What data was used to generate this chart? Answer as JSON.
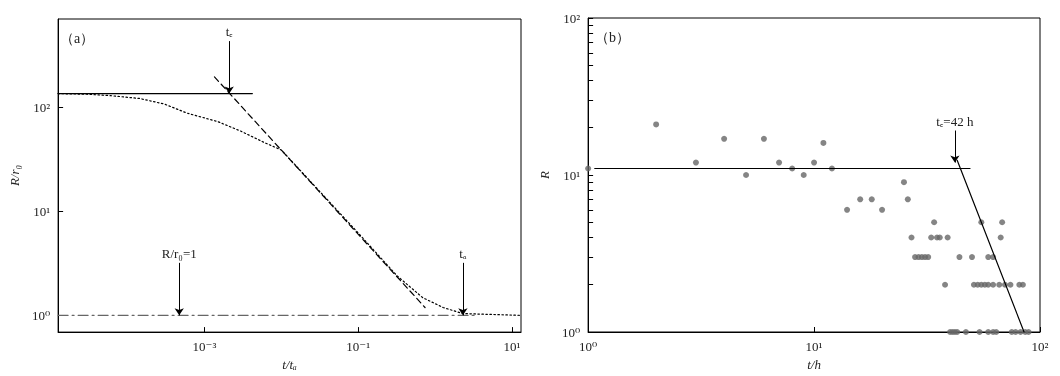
{
  "chart_data": [
    {
      "type": "line",
      "xlabel": "t/tₐ",
      "ylabel": "R/r₀",
      "log": "xy",
      "grid": false,
      "marker": "none",
      "xlim": [
        1.25e-05,
        13.1
      ],
      "ylim": [
        0.69,
        710
      ],
      "xticks": [
        {
          "value": 0.001,
          "label": "10⁻³"
        },
        {
          "value": 0.1,
          "label": "10⁻¹"
        },
        {
          "value": 10,
          "label": "10¹"
        }
      ],
      "yticks": [
        {
          "value": 1,
          "label": "10⁰"
        },
        {
          "value": 10,
          "label": "10¹"
        },
        {
          "value": 100,
          "label": "10²"
        }
      ],
      "series": [
        {
          "type": "line",
          "color": "#000000",
          "line_style": "solid",
          "x": [
            1.25e-05,
            0.0042
          ],
          "values": [
            136,
            136
          ]
        },
        {
          "type": "line",
          "color": "#000000",
          "line_style": "dashed",
          "x": [
            0.00135,
            0.74
          ],
          "values": [
            197,
            1.19
          ]
        },
        {
          "type": "line",
          "color": "#000000",
          "line_style": "dotted",
          "x": [
            1.25e-05,
            3e-05,
            6e-05,
            0.000144,
            0.0003,
            0.0006,
            0.0015,
            0.003,
            0.006,
            0.01,
            0.1,
            0.32,
            0.69,
            1.27,
            2.3,
            13.1
          ],
          "values": [
            136,
            134,
            130,
            122,
            108,
            88,
            73,
            59,
            46,
            39,
            6.2,
            2.4,
            1.48,
            1.19,
            1.04,
            1
          ]
        },
        {
          "type": "line",
          "color": "#666666",
          "line_style": "dashdot",
          "x": [
            1.25e-05,
            3.5
          ],
          "values": [
            1,
            1
          ]
        }
      ],
      "annotations": [
        "（a）",
        {
          "text": "tₑ",
          "x": 0.0021,
          "y": 136
        },
        {
          "text": "R/r₀=1",
          "x": 0.00047,
          "y": 1
        },
        {
          "text": "tₐ",
          "x": 2.3,
          "y": 1
        }
      ]
    },
    {
      "type": "scatter",
      "xlabel": "t/h",
      "ylabel": "R",
      "log": "xy",
      "grid": false,
      "marker": "circle",
      "xlim": [
        1,
        100
      ],
      "ylim": [
        1,
        100
      ],
      "xticks": [
        {
          "value": 1,
          "label": "10⁰"
        },
        {
          "value": 10,
          "label": "10¹"
        },
        {
          "value": 100,
          "label": "10²"
        }
      ],
      "yticks": [
        {
          "value": 1,
          "label": "10⁰"
        },
        {
          "value": 2,
          "label": null
        },
        {
          "value": 3,
          "label": null
        },
        {
          "value": 4,
          "label": null
        },
        {
          "value": 5,
          "label": null
        },
        {
          "value": 6,
          "label": null
        },
        {
          "value": 7,
          "label": null
        },
        {
          "value": 8,
          "label": null
        },
        {
          "value": 9,
          "label": null
        },
        {
          "value": 10,
          "label": "10¹"
        },
        {
          "value": 20,
          "label": null
        },
        {
          "value": 30,
          "label": null
        },
        {
          "value": 40,
          "label": null
        },
        {
          "value": 50,
          "label": null
        },
        {
          "value": 60,
          "label": null
        },
        {
          "value": 70,
          "label": null
        },
        {
          "value": 80,
          "label": null
        },
        {
          "value": 90,
          "label": null
        },
        {
          "value": 100,
          "label": "10²"
        }
      ],
      "series": [
        {
          "type": "scatter",
          "color": "#666666",
          "x": [
            1,
            2,
            3,
            4,
            5,
            6,
            7,
            8,
            9,
            10,
            11,
            12,
            14,
            16,
            18,
            20,
            25,
            26,
            27,
            28,
            29,
            30,
            31,
            32,
            34,
            33,
            35,
            36,
            39,
            38,
            40,
            41,
            42,
            43,
            44,
            47,
            50,
            51,
            53,
            55,
            57,
            59,
            62,
            54,
            55,
            59,
            62,
            59,
            62,
            64,
            67,
            68,
            66,
            70,
            74,
            75,
            78,
            82,
            86,
            89,
            81,
            84
          ],
          "values": [
            11,
            21,
            12,
            17,
            10,
            17,
            12,
            11,
            10,
            12,
            16,
            11,
            6,
            7,
            7,
            6,
            9,
            7,
            4,
            3,
            3,
            3,
            3,
            3,
            5,
            4,
            4,
            4,
            4,
            2,
            1,
            1,
            1,
            1,
            3,
            1,
            3,
            2,
            2,
            2,
            2,
            2,
            2,
            1,
            5,
            3,
            3,
            1,
            1,
            1,
            4,
            5,
            2,
            2,
            2,
            1,
            1,
            1,
            1,
            1,
            2,
            2
          ]
        },
        {
          "type": "line",
          "color": "#000000",
          "line_style": "solid",
          "marker": "none",
          "x": [
            1.07,
            49
          ],
          "values": [
            11,
            11
          ]
        },
        {
          "type": "line",
          "color": "#000000",
          "line_style": "solid",
          "marker": "none",
          "x": [
            43,
            85
          ],
          "values": [
            12.4,
            1
          ]
        }
      ],
      "annotations": [
        "（b）",
        {
          "text": "tₑ=42 h",
          "x": 42,
          "y": 12
        }
      ]
    }
  ]
}
